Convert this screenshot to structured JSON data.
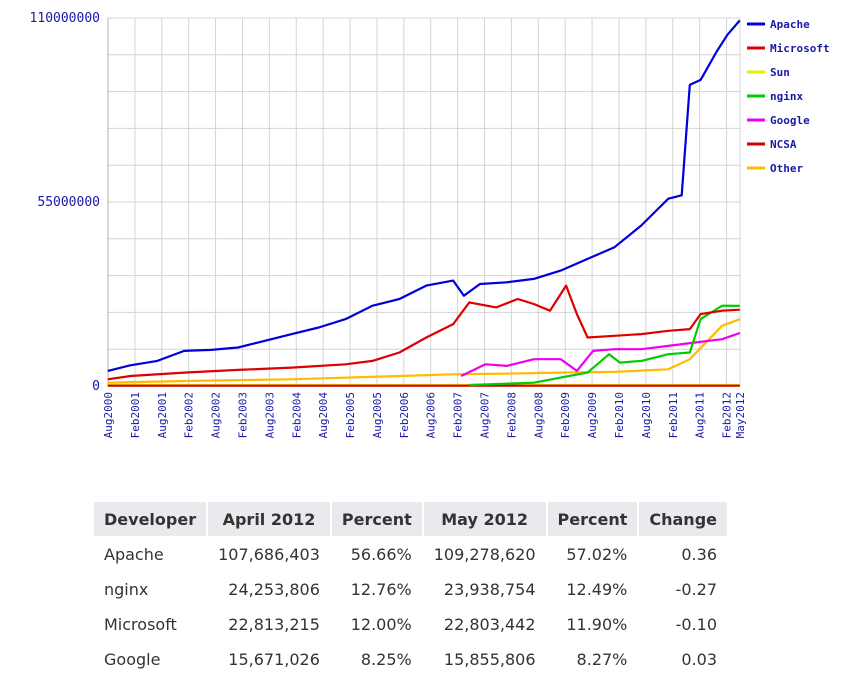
{
  "chart_data": {
    "type": "line",
    "y_tick_labels": [
      "110000000",
      "55000000",
      "0"
    ],
    "ylim": [
      0,
      110000000
    ],
    "x_tick_labels": [
      "Aug2000",
      "Feb2001",
      "Aug2001",
      "Feb2002",
      "Aug2002",
      "Feb2003",
      "Aug2003",
      "Feb2004",
      "Aug2004",
      "Feb2005",
      "Aug2005",
      "Feb2006",
      "Aug2006",
      "Feb2007",
      "Aug2007",
      "Feb2008",
      "Aug2008",
      "Feb2009",
      "Aug2009",
      "Feb2010",
      "Aug2010",
      "Feb2011",
      "Aug2011",
      "Feb2012",
      "May2012"
    ],
    "xlim": [
      2000.583,
      2012.333
    ],
    "grid": true,
    "legend_position": "top-right",
    "series": [
      {
        "name": "Apache",
        "color": "#0000dd",
        "x": [
          2000.58,
          2001.0,
          2001.5,
          2002.0,
          2002.5,
          2003.0,
          2003.5,
          2004.0,
          2004.5,
          2005.0,
          2005.5,
          2006.0,
          2006.5,
          2007.0,
          2007.2,
          2007.5,
          2008.0,
          2008.5,
          2009.0,
          2009.5,
          2010.0,
          2010.5,
          2011.0,
          2011.25,
          2011.4,
          2011.6,
          2011.9,
          2012.1,
          2012.33
        ],
        "y": [
          4500000,
          6200000,
          7500000,
          10500000,
          10800000,
          11500000,
          13500000,
          15500000,
          17500000,
          20000000,
          24000000,
          26000000,
          30000000,
          31500000,
          27000000,
          30500000,
          31000000,
          32000000,
          34500000,
          38000000,
          41500000,
          48000000,
          56000000,
          57000000,
          90000000,
          91500000,
          100000000,
          105000000,
          109278620
        ]
      },
      {
        "name": "Microsoft",
        "color": "#dd0000",
        "x": [
          2000.58,
          2001.0,
          2002.0,
          2003.0,
          2004.0,
          2005.0,
          2005.5,
          2006.0,
          2006.5,
          2007.0,
          2007.3,
          2007.8,
          2008.2,
          2008.5,
          2008.8,
          2009.1,
          2009.3,
          2009.5,
          2010.0,
          2010.5,
          2011.0,
          2011.4,
          2011.6,
          2012.0,
          2012.33
        ],
        "y": [
          2000000,
          3000000,
          4000000,
          4800000,
          5500000,
          6500000,
          7500000,
          10000000,
          14500000,
          18500000,
          25000000,
          23500000,
          26000000,
          24500000,
          22500000,
          30000000,
          21500000,
          14500000,
          15000000,
          15500000,
          16500000,
          17000000,
          21500000,
          22500000,
          22803442
        ]
      },
      {
        "name": "Sun",
        "color": "#eeee00",
        "x": [
          2000.58,
          2012.33
        ],
        "y": [
          300000,
          300000
        ]
      },
      {
        "name": "nginx",
        "color": "#00cc00",
        "x": [
          2007.3,
          2008.5,
          2009.0,
          2009.5,
          2009.9,
          2010.1,
          2010.5,
          2011.0,
          2011.4,
          2011.6,
          2012.0,
          2012.33
        ],
        "y": [
          300000,
          1000000,
          2500000,
          4000000,
          9500000,
          7000000,
          7500000,
          9500000,
          10000000,
          20000000,
          24000000,
          23938754
        ]
      },
      {
        "name": "Google",
        "color": "#ee00ee",
        "x": [
          2007.15,
          2007.6,
          2008.0,
          2008.5,
          2009.0,
          2009.3,
          2009.6,
          2010.0,
          2010.5,
          2011.0,
          2011.5,
          2012.0,
          2012.33
        ],
        "y": [
          3000000,
          6500000,
          6000000,
          8000000,
          8000000,
          4500000,
          10500000,
          11000000,
          11000000,
          12000000,
          13000000,
          14000000,
          15855806
        ]
      },
      {
        "name": "NCSA",
        "color": "#cc0000",
        "x": [
          2000.58,
          2012.33
        ],
        "y": [
          100000,
          100000
        ]
      },
      {
        "name": "Other",
        "color": "#ffbb00",
        "x": [
          2000.58,
          2002.0,
          2004.0,
          2006.0,
          2007.0,
          2008.0,
          2009.0,
          2010.0,
          2011.0,
          2011.4,
          2012.0,
          2012.33
        ],
        "y": [
          1000000,
          1500000,
          2000000,
          3000000,
          3500000,
          3700000,
          4000000,
          4200000,
          5000000,
          8000000,
          18000000,
          20000000
        ]
      }
    ]
  },
  "table": {
    "headers": [
      "Developer",
      "April 2012",
      "Percent",
      "May 2012",
      "Percent",
      "Change"
    ],
    "rows": [
      [
        "Apache",
        "107,686,403",
        "56.66%",
        "109,278,620",
        "57.02%",
        "0.36"
      ],
      [
        "nginx",
        "24,253,806",
        "12.76%",
        "23,938,754",
        "12.49%",
        "-0.27"
      ],
      [
        "Microsoft",
        "22,813,215",
        "12.00%",
        "22,803,442",
        "11.90%",
        "-0.10"
      ],
      [
        "Google",
        "15,671,026",
        "8.25%",
        "15,855,806",
        "8.27%",
        "0.03"
      ]
    ]
  }
}
